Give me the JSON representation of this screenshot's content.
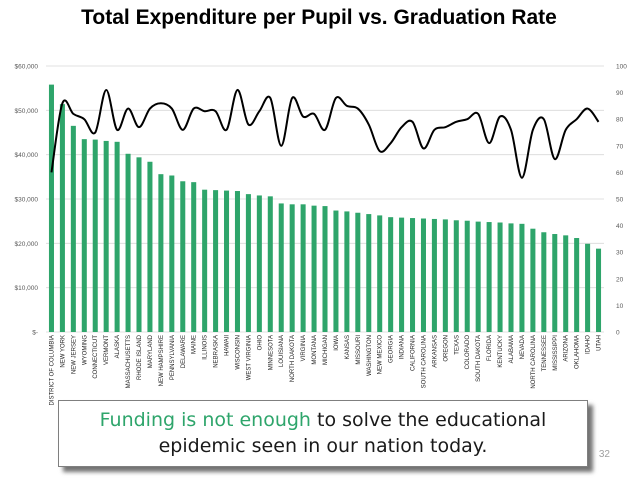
{
  "chart_data": {
    "type": "bar+line",
    "title": "Total Expenditure per Pupil vs. Graduation Rate",
    "xlabel": "",
    "ylabel": "",
    "categories": [
      "DISTRICT OF COLUMBIA",
      "NEW YORK",
      "NEW JERSEY",
      "WYOMING",
      "CONNECTICUT",
      "VERMONT",
      "ALASKA",
      "MASSACHUSETTS",
      "RHODE ISLAND",
      "MARYLAND",
      "NEW HAMPSHIRE",
      "PENNSYLVANIA",
      "DELAWARE",
      "MAINE",
      "ILLINOIS",
      "NEBRASKA",
      "HAWAII",
      "WISCONSIN",
      "WEST VIRGINIA",
      "OHIO",
      "MINNESOTA",
      "LOUISIANA",
      "NORTH DAKOTA",
      "VIRGINIA",
      "MONTANA",
      "MICHIGAN",
      "IOWA",
      "KANSAS",
      "MISSOURI",
      "WASHINGTON",
      "NEW MEXICO",
      "GEORGIA",
      "INDIANA",
      "CALIFORNIA",
      "SOUTH CAROLINA",
      "ARKANSAS",
      "OREGON",
      "TEXAS",
      "COLORADO",
      "SOUTH DAKOTA",
      "FLORIDA",
      "KENTUCKY",
      "ALABAMA",
      "NEVADA",
      "NORTH CAROLINA",
      "TENNESSEE",
      "MISSISSIPPI",
      "ARIZONA",
      "OKLAHOMA",
      "IDAHO",
      "UTAH"
    ],
    "series": [
      {
        "name": "Total Expenditure per Pupil",
        "axis": "left",
        "color": "#2ea56b",
        "values": [
          55800,
          51400,
          46500,
          43500,
          43400,
          43100,
          42900,
          40200,
          39400,
          38400,
          35600,
          35300,
          34000,
          33800,
          32100,
          32000,
          31900,
          31800,
          31100,
          30800,
          30600,
          29000,
          28800,
          28800,
          28500,
          28400,
          27400,
          27200,
          26900,
          26600,
          26300,
          25900,
          25800,
          25700,
          25600,
          25500,
          25400,
          25200,
          25100,
          24900,
          24800,
          24700,
          24500,
          24400,
          23300,
          22500,
          22100,
          21800,
          21200,
          19900,
          18800
        ]
      },
      {
        "name": "Graduation Rate",
        "axis": "right",
        "color": "#000000",
        "values": [
          60,
          86,
          82,
          80,
          75,
          91,
          76,
          84,
          77,
          84,
          86,
          84,
          76,
          84,
          83,
          83,
          76,
          91,
          78,
          83,
          88,
          70,
          88,
          81,
          82,
          76,
          88,
          85,
          84,
          78,
          68,
          71,
          77,
          79,
          69,
          76,
          77,
          79,
          80,
          82,
          71,
          81,
          76,
          58,
          76,
          80,
          65,
          76,
          80,
          84,
          79
        ]
      }
    ],
    "left_axis": {
      "ylim": [
        0,
        60000
      ],
      "ticks": [
        0,
        10000,
        20000,
        30000,
        40000,
        50000,
        60000
      ],
      "tick_labels": [
        "$-",
        "$10,000",
        "$20,000",
        "$30,000",
        "$40,000",
        "$50,000",
        "$60,000"
      ]
    },
    "right_axis": {
      "ylim": [
        0,
        100
      ],
      "ticks": [
        0,
        10,
        20,
        30,
        40,
        50,
        60,
        70,
        80,
        90,
        100
      ],
      "tick_labels": [
        "0",
        "10",
        "20",
        "30",
        "40",
        "50",
        "60",
        "70",
        "80",
        "90",
        "100"
      ]
    },
    "grid": true,
    "legend": "none"
  },
  "callout": {
    "line1_highlight": "Funding is not enough",
    "line1_rest": " to solve the educational",
    "line2": "epidemic seen in our nation today."
  },
  "page_number": "32"
}
